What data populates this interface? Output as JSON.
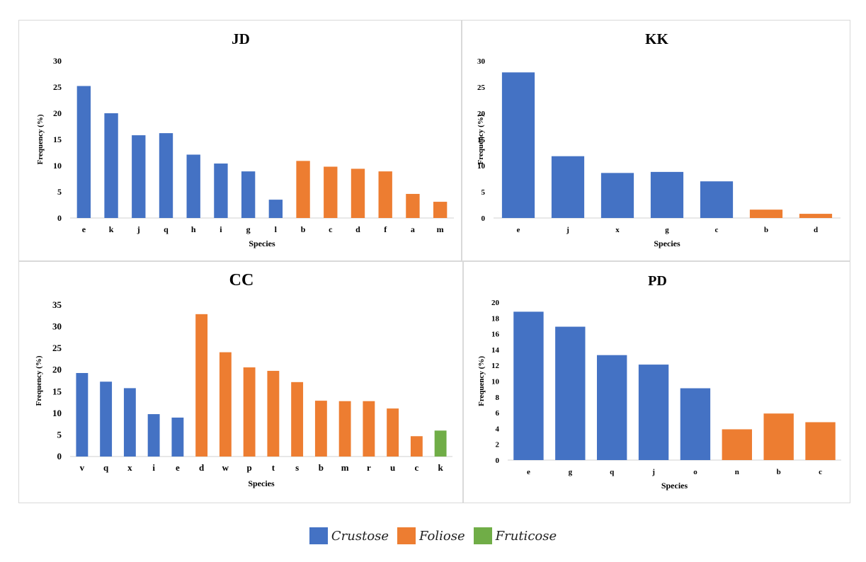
{
  "colors": {
    "Crustose": "#4472c4",
    "Foliose": "#ed7d31",
    "Fruticose": "#70ad47"
  },
  "legend": [
    {
      "label": "Crustose",
      "color": "#4472c4"
    },
    {
      "label": "Foliose",
      "color": "#ed7d31"
    },
    {
      "label": "Fruticose",
      "color": "#70ad47"
    }
  ],
  "chart_data": [
    {
      "type": "bar",
      "title": "JD",
      "xlabel": "Species",
      "ylabel": "Frequency (%)",
      "ylim": [
        0,
        30
      ],
      "yticks": [
        0,
        5,
        10,
        15,
        20,
        25,
        30
      ],
      "categories": [
        "e",
        "k",
        "j",
        "q",
        "h",
        "i",
        "g",
        "l",
        "b",
        "c",
        "d",
        "f",
        "a",
        "m"
      ],
      "values": [
        25.2,
        20,
        15.8,
        16.2,
        12.1,
        10.4,
        8.9,
        3.5,
        10.9,
        9.8,
        9.4,
        8.9,
        4.6,
        3.1
      ],
      "groups": [
        "Crustose",
        "Crustose",
        "Crustose",
        "Crustose",
        "Crustose",
        "Crustose",
        "Crustose",
        "Crustose",
        "Foliose",
        "Foliose",
        "Foliose",
        "Foliose",
        "Foliose",
        "Foliose"
      ],
      "grid": false
    },
    {
      "type": "bar",
      "title": "KK",
      "xlabel": "Species",
      "ylabel": "Frequency (%)",
      "ylim": [
        0,
        30
      ],
      "yticks": [
        0,
        5,
        10,
        15,
        20,
        25,
        30
      ],
      "categories": [
        "e",
        "j",
        "x",
        "g",
        "c",
        "b",
        "d"
      ],
      "values": [
        27.8,
        11.8,
        8.6,
        8.8,
        7.0,
        1.6,
        0.8
      ],
      "groups": [
        "Crustose",
        "Crustose",
        "Crustose",
        "Crustose",
        "Crustose",
        "Foliose",
        "Foliose"
      ],
      "grid": false
    },
    {
      "type": "bar",
      "title": "CC",
      "xlabel": "Species",
      "ylabel": "Frequency (%)",
      "ylim": [
        0,
        35
      ],
      "yticks": [
        0,
        5,
        10,
        15,
        20,
        25,
        30,
        35
      ],
      "categories": [
        "v",
        "q",
        "x",
        "i",
        "e",
        "d",
        "w",
        "p",
        "t",
        "s",
        "b",
        "m",
        "r",
        "u",
        "c",
        "k"
      ],
      "values": [
        19.3,
        17.3,
        15.8,
        9.8,
        9.0,
        32.9,
        24.1,
        20.6,
        19.8,
        17.2,
        12.9,
        12.8,
        12.8,
        11.1,
        4.7,
        6.0
      ],
      "groups": [
        "Crustose",
        "Crustose",
        "Crustose",
        "Crustose",
        "Crustose",
        "Foliose",
        "Foliose",
        "Foliose",
        "Foliose",
        "Foliose",
        "Foliose",
        "Foliose",
        "Foliose",
        "Foliose",
        "Foliose",
        "Fruticose"
      ],
      "grid": false
    },
    {
      "type": "bar",
      "title": "PD",
      "xlabel": "Species",
      "ylabel": "Frequency (%)",
      "ylim": [
        0,
        20
      ],
      "yticks": [
        0,
        2,
        4,
        6,
        8,
        10,
        12,
        14,
        16,
        18,
        20
      ],
      "categories": [
        "e",
        "g",
        "q",
        "j",
        "o",
        "n",
        "b",
        "c"
      ],
      "values": [
        18.8,
        16.9,
        13.3,
        12.1,
        9.1,
        3.9,
        5.9,
        4.8
      ],
      "groups": [
        "Crustose",
        "Crustose",
        "Crustose",
        "Crustose",
        "Crustose",
        "Foliose",
        "Foliose",
        "Foliose"
      ],
      "grid": false
    }
  ]
}
